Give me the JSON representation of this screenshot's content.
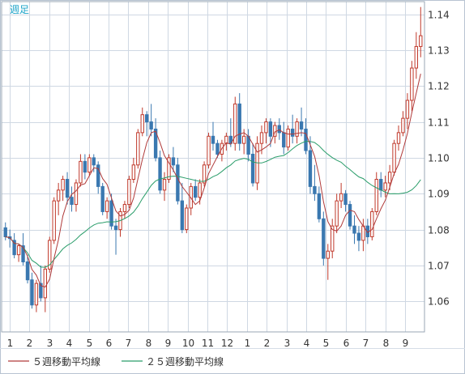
{
  "chart_data": {
    "type": "candlestick",
    "title": "週足",
    "title_color": "#1aa3c8",
    "x_tick_labels": [
      "1",
      "2",
      "3",
      "4",
      "5",
      "6",
      "7",
      "8",
      "9",
      "10",
      "11",
      "12",
      "1",
      "2",
      "3",
      "4",
      "5",
      "6",
      "7",
      "8",
      "9"
    ],
    "y_ticks": [
      1.06,
      1.07,
      1.08,
      1.09,
      1.1,
      1.11,
      1.12,
      1.13,
      1.14
    ],
    "ylim": [
      1.0515,
      1.1435
    ],
    "grid": true,
    "colors": {
      "up": "#c0392b",
      "down": "#3a78b0",
      "ma5": "#b03a3a",
      "ma25": "#2a9d6a",
      "grid": "#cfd8e3"
    },
    "legend": [
      {
        "key": "ma5",
        "label": "５週移動平均線"
      },
      {
        "key": "ma25",
        "label": "２５週移動平均線"
      }
    ],
    "candles": [
      [
        1.0805,
        1.082,
        1.077,
        1.078
      ],
      [
        1.078,
        1.08,
        1.075,
        1.0775
      ],
      [
        1.077,
        1.079,
        1.072,
        1.073
      ],
      [
        1.073,
        1.076,
        1.071,
        1.0755
      ],
      [
        1.0755,
        1.079,
        1.07,
        1.071
      ],
      [
        1.071,
        1.073,
        1.065,
        1.066
      ],
      [
        1.066,
        1.068,
        1.058,
        1.059
      ],
      [
        1.059,
        1.066,
        1.057,
        1.065
      ],
      [
        1.065,
        1.07,
        1.06,
        1.061
      ],
      [
        1.061,
        1.07,
        1.057,
        1.069
      ],
      [
        1.069,
        1.078,
        1.068,
        1.077
      ],
      [
        1.077,
        1.089,
        1.076,
        1.088
      ],
      [
        1.088,
        1.093,
        1.084,
        1.091
      ],
      [
        1.091,
        1.095,
        1.088,
        1.094
      ],
      [
        1.094,
        1.096,
        1.087,
        1.089
      ],
      [
        1.089,
        1.092,
        1.085,
        1.087
      ],
      [
        1.087,
        1.094,
        1.085,
        1.093
      ],
      [
        1.093,
        1.101,
        1.092,
        1.099
      ],
      [
        1.099,
        1.101,
        1.094,
        1.096
      ],
      [
        1.096,
        1.101,
        1.095,
        1.1
      ],
      [
        1.1,
        1.101,
        1.096,
        1.098
      ],
      [
        1.098,
        1.099,
        1.09,
        1.092
      ],
      [
        1.092,
        1.093,
        1.084,
        1.085
      ],
      [
        1.085,
        1.089,
        1.083,
        1.088
      ],
      [
        1.088,
        1.09,
        1.08,
        1.081
      ],
      [
        1.081,
        1.083,
        1.073,
        1.08
      ],
      [
        1.08,
        1.086,
        1.078,
        1.085
      ],
      [
        1.085,
        1.088,
        1.083,
        1.087
      ],
      [
        1.087,
        1.095,
        1.086,
        1.094
      ],
      [
        1.094,
        1.1,
        1.093,
        1.098
      ],
      [
        1.098,
        1.108,
        1.097,
        1.107
      ],
      [
        1.107,
        1.114,
        1.106,
        1.112
      ],
      [
        1.112,
        1.113,
        1.106,
        1.11
      ],
      [
        1.11,
        1.115,
        1.106,
        1.108
      ],
      [
        1.108,
        1.111,
        1.099,
        1.1
      ],
      [
        1.1,
        1.102,
        1.09,
        1.091
      ],
      [
        1.091,
        1.096,
        1.088,
        1.094
      ],
      [
        1.094,
        1.101,
        1.093,
        1.1
      ],
      [
        1.1,
        1.103,
        1.096,
        1.098
      ],
      [
        1.098,
        1.1,
        1.087,
        1.088
      ],
      [
        1.088,
        1.093,
        1.079,
        1.08
      ],
      [
        1.08,
        1.087,
        1.079,
        1.086
      ],
      [
        1.086,
        1.093,
        1.084,
        1.092
      ],
      [
        1.092,
        1.094,
        1.088,
        1.089
      ],
      [
        1.089,
        1.094,
        1.087,
        1.093
      ],
      [
        1.093,
        1.099,
        1.092,
        1.098
      ],
      [
        1.098,
        1.107,
        1.097,
        1.106
      ],
      [
        1.106,
        1.11,
        1.102,
        1.104
      ],
      [
        1.104,
        1.105,
        1.1,
        1.101
      ],
      [
        1.101,
        1.105,
        1.099,
        1.104
      ],
      [
        1.104,
        1.107,
        1.102,
        1.106
      ],
      [
        1.106,
        1.111,
        1.103,
        1.104
      ],
      [
        1.104,
        1.117,
        1.102,
        1.115
      ],
      [
        1.115,
        1.118,
        1.102,
        1.104
      ],
      [
        1.104,
        1.108,
        1.101,
        1.106
      ],
      [
        1.106,
        1.108,
        1.099,
        1.101
      ],
      [
        1.101,
        1.104,
        1.092,
        1.093
      ],
      [
        1.093,
        1.106,
        1.091,
        1.104
      ],
      [
        1.104,
        1.109,
        1.101,
        1.107
      ],
      [
        1.107,
        1.111,
        1.104,
        1.11
      ],
      [
        1.11,
        1.111,
        1.103,
        1.106
      ],
      [
        1.106,
        1.11,
        1.104,
        1.109
      ],
      [
        1.109,
        1.111,
        1.105,
        1.107
      ],
      [
        1.107,
        1.11,
        1.101,
        1.103
      ],
      [
        1.103,
        1.109,
        1.102,
        1.108
      ],
      [
        1.108,
        1.112,
        1.104,
        1.106
      ],
      [
        1.106,
        1.111,
        1.104,
        1.11
      ],
      [
        1.11,
        1.114,
        1.106,
        1.108
      ],
      [
        1.108,
        1.111,
        1.101,
        1.102
      ],
      [
        1.102,
        1.106,
        1.09,
        1.092
      ],
      [
        1.092,
        1.098,
        1.088,
        1.09
      ],
      [
        1.09,
        1.092,
        1.082,
        1.083
      ],
      [
        1.083,
        1.085,
        1.07,
        1.072
      ],
      [
        1.072,
        1.076,
        1.066,
        1.074
      ],
      [
        1.074,
        1.083,
        1.072,
        1.081
      ],
      [
        1.081,
        1.09,
        1.079,
        1.088
      ],
      [
        1.088,
        1.093,
        1.086,
        1.09
      ],
      [
        1.09,
        1.091,
        1.085,
        1.087
      ],
      [
        1.087,
        1.088,
        1.08,
        1.081
      ],
      [
        1.081,
        1.084,
        1.076,
        1.079
      ],
      [
        1.079,
        1.081,
        1.074,
        1.077
      ],
      [
        1.077,
        1.083,
        1.074,
        1.081
      ],
      [
        1.081,
        1.083,
        1.076,
        1.078
      ],
      [
        1.078,
        1.086,
        1.077,
        1.085
      ],
      [
        1.085,
        1.096,
        1.084,
        1.094
      ],
      [
        1.094,
        1.096,
        1.089,
        1.091
      ],
      [
        1.091,
        1.095,
        1.089,
        1.093
      ],
      [
        1.093,
        1.098,
        1.091,
        1.096
      ],
      [
        1.096,
        1.105,
        1.095,
        1.104
      ],
      [
        1.104,
        1.109,
        1.102,
        1.107
      ],
      [
        1.107,
        1.113,
        1.106,
        1.111
      ],
      [
        1.111,
        1.118,
        1.108,
        1.116
      ],
      [
        1.116,
        1.127,
        1.113,
        1.125
      ],
      [
        1.125,
        1.135,
        1.122,
        1.131
      ],
      [
        1.131,
        1.142,
        1.128,
        1.134
      ]
    ]
  }
}
